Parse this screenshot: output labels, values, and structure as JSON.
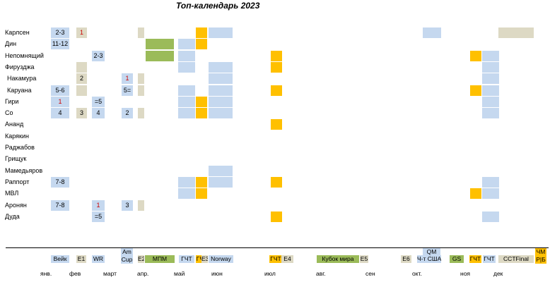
{
  "title": "Топ-календарь 2023",
  "colors": {
    "blue": "#c5d8ef",
    "gold": "#ffc000",
    "green": "#9bbb59",
    "beige": "#ddd9c4"
  },
  "players": [
    "Карлсен",
    "Дин",
    "Непомнящий",
    "Фирузджа",
    "Накамура",
    "Каруана",
    "Гири",
    "Со",
    "Ананд",
    "Карякин",
    "Раджабов",
    "Грищук",
    "Мамедьяров",
    "Раппорт",
    "МВЛ",
    "Аронян",
    "Дуда"
  ],
  "chart_data": {
    "type": "table",
    "title": "Топ-календарь 2023",
    "rows": [
      "Карлсен",
      "Дин",
      "Непомнящий",
      "Фирузджа",
      "Накамура",
      "Каруана",
      "Гири",
      "Со",
      "Ананд",
      "Карякин",
      "Раджабов",
      "Грищук",
      "Мамедьяров",
      "Раппорт",
      "МВЛ",
      "Аронян",
      "Дуда"
    ],
    "months": [
      "янв.",
      "фев",
      "март",
      "апр.",
      "май",
      "июн",
      "июл",
      "авг.",
      "сен",
      "окт.",
      "ноя",
      "дек"
    ],
    "events": [
      "Вейк",
      "E1",
      "WR",
      "Am Cup",
      "E2",
      "МПМ",
      "ГЧТ",
      "ГЧТ",
      "E3",
      "Norway",
      "ГЧТ",
      "E4",
      "Кубок мира",
      "E5",
      "E6",
      "QM",
      "Ч-т США",
      "GS",
      "ГЧТ",
      "ГЧТ",
      "CCTFinal",
      "ЧМ Р|Б"
    ],
    "results": [
      {
        "player": "Карлсен",
        "event": "Вейк",
        "place": "2-3"
      },
      {
        "player": "Карлсен",
        "event": "E1",
        "place": "1"
      },
      {
        "player": "Дин",
        "event": "Вейк",
        "place": "11-12"
      },
      {
        "player": "Непомнящий",
        "event": "WR",
        "place": "2-3"
      },
      {
        "player": "Накамура",
        "event": "E1",
        "place": "2"
      },
      {
        "player": "Накамура",
        "event": "Am Cup",
        "place": "1"
      },
      {
        "player": "Каруана",
        "event": "Вейк",
        "place": "5-6"
      },
      {
        "player": "Каруана",
        "event": "Am Cup",
        "place": "5="
      },
      {
        "player": "Гири",
        "event": "Вейк",
        "place": "1"
      },
      {
        "player": "Гири",
        "event": "WR",
        "place": "=5"
      },
      {
        "player": "Со",
        "event": "Вейк",
        "place": "4"
      },
      {
        "player": "Со",
        "event": "E1",
        "place": "3"
      },
      {
        "player": "Со",
        "event": "WR",
        "place": "4"
      },
      {
        "player": "Со",
        "event": "Am Cup",
        "place": "2"
      },
      {
        "player": "Раппорт",
        "event": "Вейк",
        "place": "7-8"
      },
      {
        "player": "Аронян",
        "event": "Вейк",
        "place": "7-8"
      },
      {
        "player": "Аронян",
        "event": "WR",
        "place": "1"
      },
      {
        "player": "Аронян",
        "event": "Am Cup",
        "place": "3"
      },
      {
        "player": "Дуда",
        "event": "WR",
        "place": "=5"
      }
    ]
  },
  "events_row": [
    {
      "label": "Вейк",
      "color": "blue"
    },
    {
      "label": "E1",
      "color": "beige"
    },
    {
      "label": "WR",
      "color": "blue"
    },
    {
      "label": "Am Cup",
      "color": "blue"
    },
    {
      "label": "E2",
      "color": "beige"
    },
    {
      "label": "МПМ",
      "color": "green"
    },
    {
      "label": "ГЧТ",
      "color": "blue"
    },
    {
      "label": "ГЧТ",
      "color": "gold"
    },
    {
      "label": "E3",
      "color": "beige"
    },
    {
      "label": "Norway",
      "color": "blue"
    },
    {
      "label": "ГЧТ",
      "color": "gold"
    },
    {
      "label": "E4",
      "color": "beige"
    },
    {
      "label": "Кубок мира",
      "color": "green"
    },
    {
      "label": "E5",
      "color": "beige"
    },
    {
      "label": "E6",
      "color": "beige"
    },
    {
      "label": "QM",
      "color": "blue"
    },
    {
      "label": "Ч-т США",
      "color": "blue"
    },
    {
      "label": "GS",
      "color": "green"
    },
    {
      "label": "ГЧТ",
      "color": "gold"
    },
    {
      "label": "ГЧТ",
      "color": "blue"
    },
    {
      "label": "CCTFinal",
      "color": "beige"
    },
    {
      "label": "ЧМ Р|Б",
      "color": "gold"
    }
  ],
  "grid": [
    {
      "row": 0,
      "event": "Вейк",
      "color": "blue",
      "text": "2-3"
    },
    {
      "row": 0,
      "event": "E1",
      "color": "beige",
      "text": "1",
      "red": true
    },
    {
      "row": 0,
      "event": "E2",
      "color": "beige",
      "text": ""
    },
    {
      "row": 0,
      "event": "ГЧТ1",
      "color": "gold",
      "text": ""
    },
    {
      "row": 0,
      "event": "Norway",
      "color": "blue",
      "text": ""
    },
    {
      "row": 0,
      "event": "QM",
      "color": "blue",
      "text": ""
    },
    {
      "row": 0,
      "event": "CCTFinal",
      "color": "beige",
      "text": ""
    },
    {
      "row": 1,
      "event": "Вейк",
      "color": "blue",
      "text": "11-12"
    },
    {
      "row": 1,
      "event": "МПМ",
      "color": "green",
      "text": ""
    },
    {
      "row": 1,
      "event": "ГЧТ0",
      "color": "blue",
      "text": ""
    },
    {
      "row": 1,
      "event": "ГЧТ1",
      "color": "gold",
      "text": ""
    },
    {
      "row": 2,
      "event": "WR",
      "color": "blue",
      "text": "2-3"
    },
    {
      "row": 2,
      "event": "МПМ",
      "color": "green",
      "text": ""
    },
    {
      "row": 2,
      "event": "ГЧТ0",
      "color": "blue",
      "text": ""
    },
    {
      "row": 2,
      "event": "ГЧТ2",
      "color": "gold",
      "text": ""
    },
    {
      "row": 2,
      "event": "ГЧТ3",
      "color": "gold",
      "text": ""
    },
    {
      "row": 2,
      "event": "ГЧТ4",
      "color": "blue",
      "text": ""
    },
    {
      "row": 3,
      "event": "E1",
      "color": "beige",
      "text": ""
    },
    {
      "row": 3,
      "event": "ГЧТ0",
      "color": "blue",
      "text": ""
    },
    {
      "row": 3,
      "event": "Norway",
      "color": "blue",
      "text": ""
    },
    {
      "row": 3,
      "event": "ГЧТ2",
      "color": "gold",
      "text": ""
    },
    {
      "row": 3,
      "event": "ГЧТ4",
      "color": "blue",
      "text": ""
    },
    {
      "row": 4,
      "event": "E1",
      "color": "beige",
      "text": "2"
    },
    {
      "row": 4,
      "event": "Am Cup",
      "color": "blue",
      "text": "1",
      "red": true
    },
    {
      "row": 4,
      "event": "E2",
      "color": "beige",
      "text": ""
    },
    {
      "row": 4,
      "event": "Norway",
      "color": "blue",
      "text": ""
    },
    {
      "row": 4,
      "event": "ГЧТ4",
      "color": "blue",
      "text": ""
    },
    {
      "row": 5,
      "event": "Вейк",
      "color": "blue",
      "text": "5-6"
    },
    {
      "row": 5,
      "event": "E1",
      "color": "beige",
      "text": ""
    },
    {
      "row": 5,
      "event": "Am Cup",
      "color": "blue",
      "text": "5="
    },
    {
      "row": 5,
      "event": "E2",
      "color": "beige",
      "text": ""
    },
    {
      "row": 5,
      "event": "ГЧТ0",
      "color": "blue",
      "text": ""
    },
    {
      "row": 5,
      "event": "Norway",
      "color": "blue",
      "text": ""
    },
    {
      "row": 5,
      "event": "ГЧТ2",
      "color": "gold",
      "text": ""
    },
    {
      "row": 5,
      "event": "ГЧТ3",
      "color": "gold",
      "text": ""
    },
    {
      "row": 5,
      "event": "ГЧТ4",
      "color": "blue",
      "text": ""
    },
    {
      "row": 6,
      "event": "Вейк",
      "color": "blue",
      "text": "1",
      "red": true
    },
    {
      "row": 6,
      "event": "WR",
      "color": "blue",
      "text": "=5"
    },
    {
      "row": 6,
      "event": "ГЧТ0",
      "color": "blue",
      "text": ""
    },
    {
      "row": 6,
      "event": "ГЧТ1",
      "color": "gold",
      "text": ""
    },
    {
      "row": 6,
      "event": "Norway",
      "color": "blue",
      "text": ""
    },
    {
      "row": 6,
      "event": "ГЧТ4",
      "color": "blue",
      "text": ""
    },
    {
      "row": 7,
      "event": "Вейк",
      "color": "blue",
      "text": "4"
    },
    {
      "row": 7,
      "event": "E1",
      "color": "beige",
      "text": "3"
    },
    {
      "row": 7,
      "event": "WR",
      "color": "blue",
      "text": "4"
    },
    {
      "row": 7,
      "event": "Am Cup",
      "color": "blue",
      "text": "2"
    },
    {
      "row": 7,
      "event": "E2",
      "color": "beige",
      "text": ""
    },
    {
      "row": 7,
      "event": "ГЧТ0",
      "color": "blue",
      "text": ""
    },
    {
      "row": 7,
      "event": "ГЧТ1",
      "color": "gold",
      "text": ""
    },
    {
      "row": 7,
      "event": "Norway",
      "color": "blue",
      "text": ""
    },
    {
      "row": 7,
      "event": "ГЧТ4",
      "color": "blue",
      "text": ""
    },
    {
      "row": 8,
      "event": "ГЧТ2",
      "color": "gold",
      "text": ""
    },
    {
      "row": 12,
      "event": "Norway",
      "color": "blue",
      "text": ""
    },
    {
      "row": 13,
      "event": "Вейк",
      "color": "blue",
      "text": "7-8"
    },
    {
      "row": 13,
      "event": "ГЧТ0",
      "color": "blue",
      "text": ""
    },
    {
      "row": 13,
      "event": "ГЧТ1",
      "color": "gold",
      "text": ""
    },
    {
      "row": 13,
      "event": "Norway",
      "color": "blue",
      "text": ""
    },
    {
      "row": 13,
      "event": "ГЧТ2",
      "color": "gold",
      "text": ""
    },
    {
      "row": 13,
      "event": "ГЧТ4",
      "color": "blue",
      "text": ""
    },
    {
      "row": 14,
      "event": "ГЧТ0",
      "color": "blue",
      "text": ""
    },
    {
      "row": 14,
      "event": "ГЧТ1",
      "color": "gold",
      "text": ""
    },
    {
      "row": 14,
      "event": "ГЧТ3",
      "color": "gold",
      "text": ""
    },
    {
      "row": 14,
      "event": "ГЧТ4",
      "color": "blue",
      "text": ""
    },
    {
      "row": 15,
      "event": "Вейк",
      "color": "blue",
      "text": "7-8"
    },
    {
      "row": 15,
      "event": "WR",
      "color": "blue",
      "text": "1",
      "red": true
    },
    {
      "row": 15,
      "event": "Am Cup",
      "color": "blue",
      "text": "3"
    },
    {
      "row": 15,
      "event": "E2",
      "color": "beige",
      "text": ""
    },
    {
      "row": 16,
      "event": "WR",
      "color": "blue",
      "text": "=5"
    },
    {
      "row": 16,
      "event": "ГЧТ2",
      "color": "gold",
      "text": ""
    },
    {
      "row": 16,
      "event": "ГЧТ4",
      "color": "blue",
      "text": ""
    }
  ],
  "months": [
    "янв.",
    "фев",
    "март",
    "апр.",
    "май",
    "июн",
    "июл",
    "авг.",
    "сен",
    "окт.",
    "ноя",
    "дек"
  ]
}
